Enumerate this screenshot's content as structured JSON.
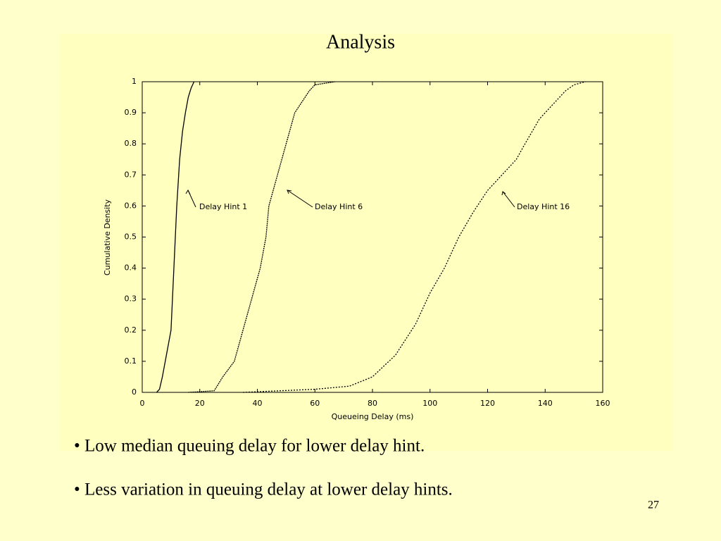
{
  "slide": {
    "title": "Analysis",
    "bullets": [
      "• Low median queuing delay for lower delay hint.",
      "• Less variation in queuing delay at lower delay hints."
    ],
    "page_number": "27"
  },
  "chart_data": {
    "type": "line",
    "x_label": "Queueing Delay (ms)",
    "y_label": "Cumulative Density",
    "xlim": [
      0,
      160
    ],
    "xticks": [
      0,
      20,
      40,
      60,
      80,
      100,
      120,
      140,
      160
    ],
    "ylim": [
      0,
      1
    ],
    "yticks": [
      0,
      0.1,
      0.2,
      0.3,
      0.4,
      0.5,
      0.6,
      0.7,
      0.8,
      0.9,
      1
    ],
    "grid": false,
    "series": [
      {
        "name": "Delay Hint 1",
        "color": "#000000",
        "x": [
          5,
          6,
          7,
          8,
          9,
          10,
          11,
          12,
          13,
          14,
          15,
          16,
          17,
          18
        ],
        "values": [
          0,
          0.01,
          0.05,
          0.1,
          0.15,
          0.2,
          0.4,
          0.6,
          0.75,
          0.84,
          0.9,
          0.95,
          0.98,
          1
        ]
      },
      {
        "name": "Delay Hint 6",
        "color": "#000000",
        "x": [
          16,
          25,
          28,
          32,
          35,
          38,
          41,
          43,
          44,
          47,
          50,
          53,
          58,
          60,
          67
        ],
        "values": [
          0,
          0.005,
          0.05,
          0.1,
          0.2,
          0.3,
          0.4,
          0.5,
          0.6,
          0.7,
          0.8,
          0.9,
          0.97,
          0.99,
          1
        ]
      },
      {
        "name": "Delay Hint 16",
        "color": "#000000",
        "x": [
          35,
          60,
          72,
          80,
          88,
          95,
          100,
          105,
          110,
          115,
          120,
          125,
          130,
          133,
          138,
          143,
          147,
          150,
          154
        ],
        "values": [
          0,
          0.01,
          0.02,
          0.05,
          0.12,
          0.22,
          0.32,
          0.4,
          0.5,
          0.58,
          0.65,
          0.7,
          0.75,
          0.8,
          0.88,
          0.93,
          0.97,
          0.99,
          1
        ]
      }
    ],
    "annotations": [
      "Delay Hint 1",
      "Delay Hint 6",
      "Delay Hint 16"
    ]
  }
}
